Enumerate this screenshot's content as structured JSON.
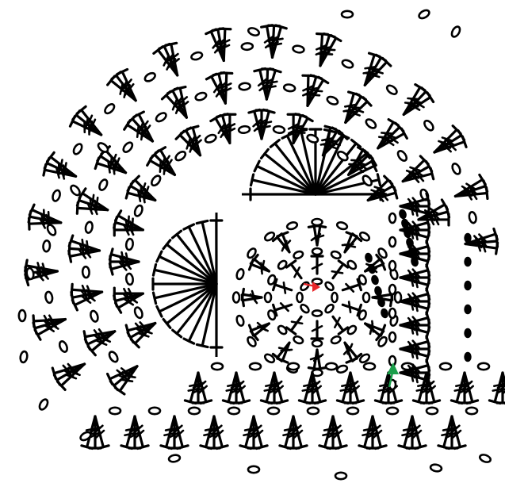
{
  "diagram": {
    "kind": "crochet-stitch-chart",
    "ink_color": "#000000",
    "background_color": "#ffffff",
    "stitch_symbols": [
      "chain-oval",
      "double-crochet",
      "treble-crochet",
      "filled-slip-stitch"
    ],
    "marker_colors": {
      "start": "#e8272b",
      "direction": "#1a9e4a"
    }
  }
}
